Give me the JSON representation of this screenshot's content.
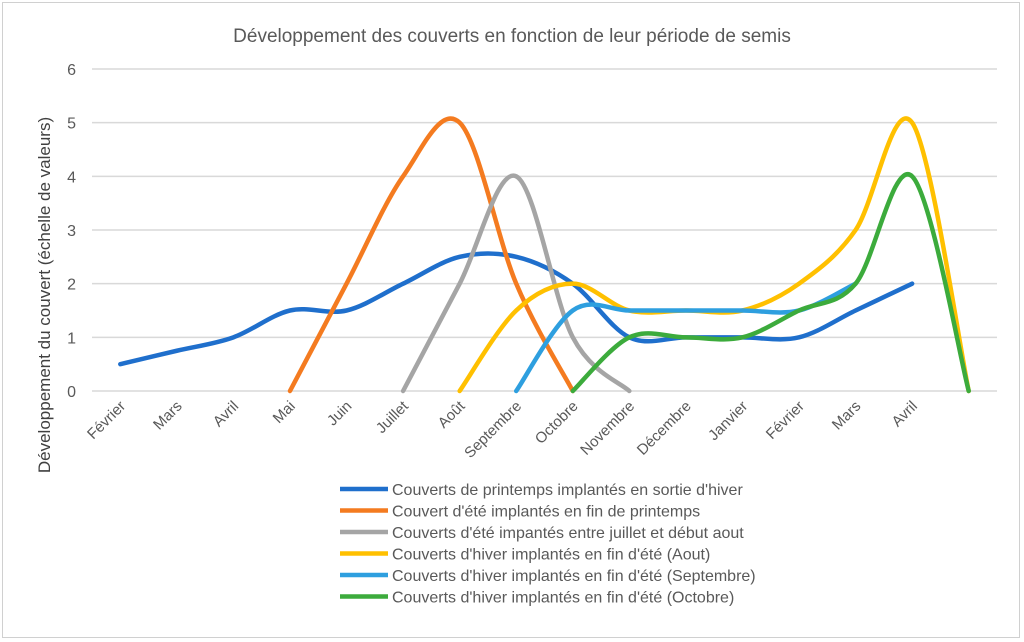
{
  "chart_data": {
    "type": "line",
    "title": "Développement  des couverts en fonction de leur période de semis",
    "xlabel": "",
    "ylabel": "Développement du couvert (échelle de valeurs)",
    "ylim": [
      0,
      6
    ],
    "yticks": [
      "0",
      "1",
      "2",
      "3",
      "4",
      "5",
      "6"
    ],
    "grid": true,
    "legend_position": "bottom",
    "categories": [
      "Février",
      "Mars",
      "Avril",
      "Mai",
      "Juin",
      "Juillet",
      "Août",
      "Septembre",
      "Octobre",
      "Novembre",
      "Décembre",
      "Janvier",
      "Février",
      "Mars",
      "Avril",
      ""
    ],
    "series": [
      {
        "name": "Couverts de printemps implantés en sortie d'hiver",
        "color": "#1f6fcc",
        "values": [
          0.5,
          0.75,
          1,
          1.5,
          1.5,
          2,
          2.5,
          2.5,
          2,
          1,
          1,
          1,
          1,
          1.5,
          2,
          null
        ]
      },
      {
        "name": "Couvert d'été implantés en fin de printemps",
        "color": "#f47b20",
        "values": [
          null,
          null,
          null,
          0,
          2,
          4,
          5,
          2,
          0,
          null,
          null,
          null,
          null,
          null,
          null,
          null
        ]
      },
      {
        "name": "Couverts d'été impantés entre juillet et début aout",
        "color": "#a5a5a5",
        "values": [
          null,
          null,
          null,
          null,
          null,
          0,
          2,
          4,
          1,
          0,
          null,
          null,
          null,
          null,
          null,
          null
        ]
      },
      {
        "name": "Couverts d'hiver implantés en fin d'été (Aout)",
        "color": "#ffc000",
        "values": [
          null,
          null,
          null,
          null,
          null,
          null,
          0,
          1.5,
          2,
          1.5,
          1.5,
          1.5,
          2,
          3,
          5,
          0
        ]
      },
      {
        "name": "Couverts d'hiver implantés en fin d'été (Septembre)",
        "color": "#2e9fdf",
        "values": [
          null,
          null,
          null,
          null,
          null,
          null,
          null,
          0,
          1.5,
          1.5,
          1.5,
          1.5,
          1.5,
          2,
          null,
          null
        ]
      },
      {
        "name": "Couverts d'hiver implantés en fin d'été (Octobre)",
        "color": "#3cab3c",
        "values": [
          null,
          null,
          null,
          null,
          null,
          null,
          null,
          null,
          0,
          1,
          1,
          1,
          1.5,
          2,
          4,
          0
        ]
      }
    ]
  }
}
